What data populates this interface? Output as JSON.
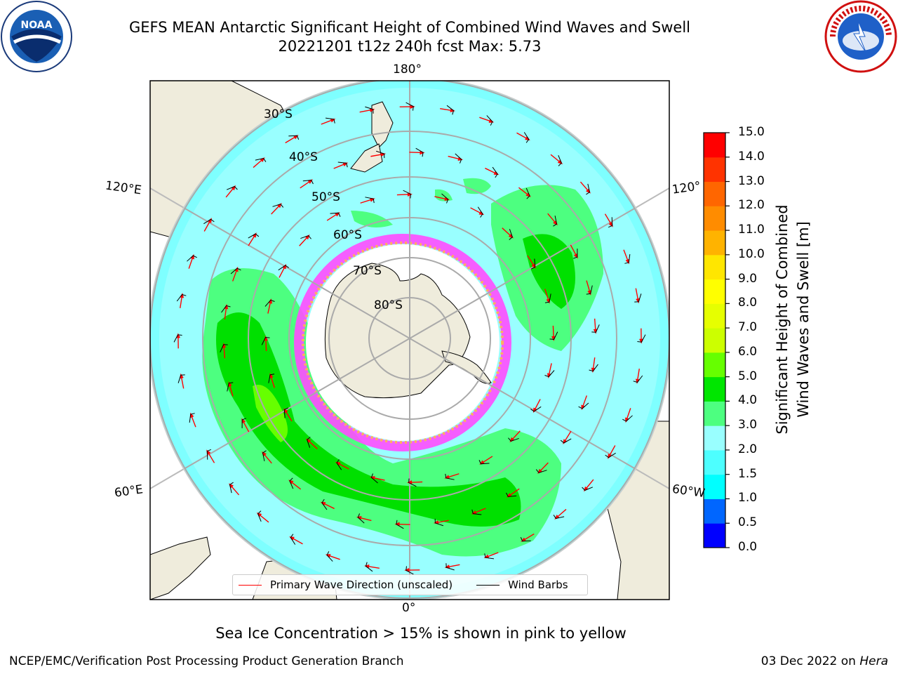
{
  "header": {
    "title_line1": "GEFS MEAN Antarctic Significant Height of Combined Wind Waves and Swell",
    "title_line2": "20221201 t12z 240h fcst   Max: 5.73"
  },
  "logos": {
    "left": "noaa-logo",
    "right": "nws-logo"
  },
  "map": {
    "projection": "south-polar-stereographic",
    "lon_labels": {
      "top": "180°",
      "bottom": "0°",
      "left_upper": "120°E",
      "left_lower": "60°E",
      "right_upper": "120°",
      "right_lower": "60°W"
    },
    "lat_labels": [
      "30°S",
      "40°S",
      "50°S",
      "60°S",
      "70°S",
      "80°S"
    ],
    "colors": {
      "land": "#efecdc",
      "ice": "#ffffff",
      "wave_2_3": "#99ffff",
      "wave_3_4": "#4dff80",
      "wave_4_5": "#00e000",
      "arrow": "#ff0000",
      "barb": "#000000"
    }
  },
  "legend": {
    "wave_label": "Primary Wave Direction (unscaled)",
    "barb_label": "Wind Barbs",
    "wave_color": "#ff0000",
    "barb_color": "#000000"
  },
  "colorbar": {
    "label_line1": "Significant Height of Combined",
    "label_line2": "Wind Waves and Swell [m]",
    "ticks": [
      "0.0",
      "0.5",
      "1.0",
      "1.5",
      "2.0",
      "3.0",
      "4.0",
      "5.0",
      "6.0",
      "7.0",
      "8.0",
      "9.0",
      "10.0",
      "11.0",
      "12.0",
      "13.0",
      "14.0",
      "15.0"
    ],
    "colors": [
      "#0000ff",
      "#0066ff",
      "#00ffff",
      "#4dffff",
      "#99ffff",
      "#4dff80",
      "#00e600",
      "#66ff00",
      "#ccff00",
      "#e6ff00",
      "#ffff00",
      "#ffe600",
      "#ffb300",
      "#ff8c00",
      "#ff6600",
      "#ff3300",
      "#ff0000"
    ]
  },
  "caption": "Sea Ice Concentration > 15% is shown in pink to yellow",
  "footer": {
    "left": "NCEP/EMC/Verification Post Processing Product Generation Branch",
    "right_date": "03 Dec 2022 on",
    "right_host": "Hera"
  }
}
